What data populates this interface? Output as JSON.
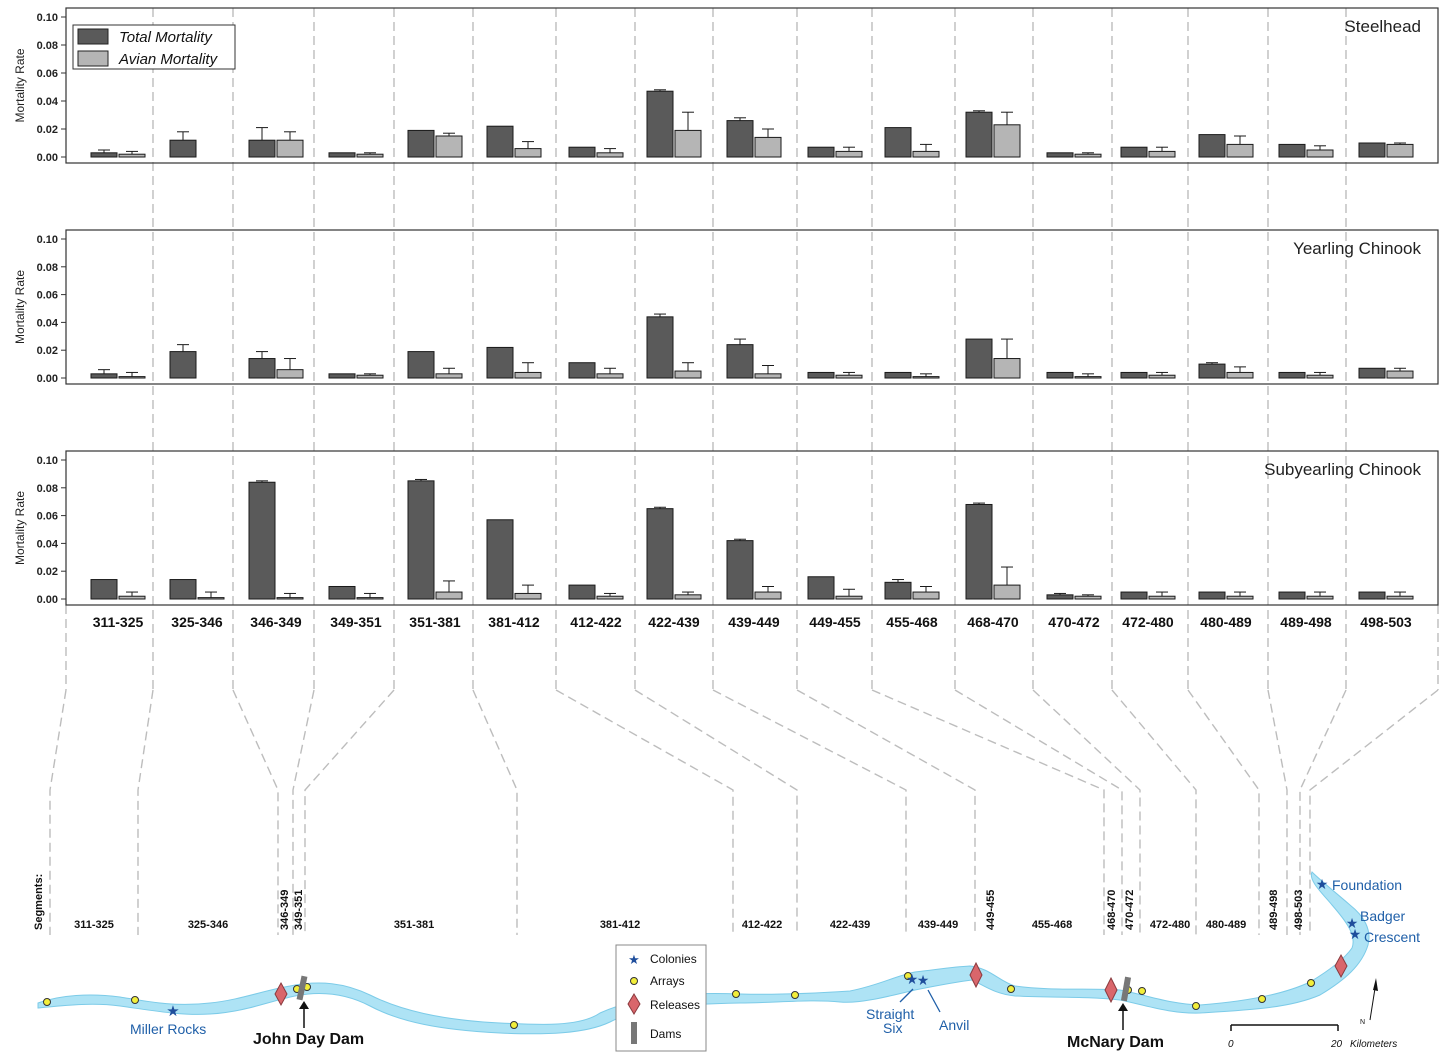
{
  "chart_data": {
    "type": "bar",
    "ylabel": "Mortality Rate",
    "ylim": [
      0,
      0.1
    ],
    "yticks": [
      "0.00",
      "0.02",
      "0.04",
      "0.06",
      "0.08",
      "0.10"
    ],
    "categories": [
      "311-325",
      "325-346",
      "346-349",
      "349-351",
      "351-381",
      "381-412",
      "412-422",
      "422-439",
      "439-449",
      "449-455",
      "455-468",
      "468-470",
      "470-472",
      "472-480",
      "480-489",
      "489-498",
      "498-503"
    ],
    "legend": {
      "total": "Total Mortality",
      "avian": "Avian Mortality",
      "placement": "top-left"
    },
    "colors": {
      "total": "#5a5a5a",
      "avian": "#b5b5b5",
      "river": "#aee3f5",
      "river_edge": "#7ccbe8",
      "release": "#d9666b",
      "dam": "#777777",
      "array": "#f2ee3a",
      "colony": "#1f4e9c",
      "guide": "#bdbdbd"
    },
    "panels": [
      {
        "title": "Steelhead",
        "total": [
          0.003,
          0.012,
          0.012,
          0.003,
          0.019,
          0.022,
          0.007,
          0.047,
          0.026,
          0.007,
          0.021,
          0.032,
          0.003,
          0.007,
          0.016,
          0.009,
          0.01
        ],
        "total_err": [
          0.002,
          0.006,
          0.009,
          0.0,
          0.0,
          0.0,
          0.0,
          0.001,
          0.002,
          0.0,
          0.0,
          0.001,
          0.0,
          0.0,
          0.0,
          0.0,
          0.0
        ],
        "avian": [
          0.002,
          0.0,
          0.012,
          0.002,
          0.015,
          0.006,
          0.003,
          0.019,
          0.014,
          0.004,
          0.004,
          0.023,
          0.002,
          0.004,
          0.009,
          0.005,
          0.009
        ],
        "avian_err": [
          0.002,
          0.0,
          0.006,
          0.001,
          0.002,
          0.005,
          0.003,
          0.013,
          0.006,
          0.003,
          0.005,
          0.009,
          0.001,
          0.003,
          0.006,
          0.003,
          0.001
        ]
      },
      {
        "title": "Yearling Chinook",
        "total": [
          0.003,
          0.019,
          0.014,
          0.003,
          0.019,
          0.022,
          0.011,
          0.044,
          0.024,
          0.004,
          0.004,
          0.028,
          0.004,
          0.004,
          0.01,
          0.004,
          0.007
        ],
        "total_err": [
          0.003,
          0.005,
          0.005,
          0.0,
          0.0,
          0.0,
          0.0,
          0.002,
          0.004,
          0.0,
          0.0,
          0.0,
          0.0,
          0.0,
          0.001,
          0.0,
          0.0
        ],
        "avian": [
          0.001,
          0.0,
          0.006,
          0.002,
          0.003,
          0.004,
          0.003,
          0.005,
          0.003,
          0.002,
          0.001,
          0.014,
          0.001,
          0.002,
          0.004,
          0.002,
          0.005
        ],
        "avian_err": [
          0.003,
          0.0,
          0.008,
          0.001,
          0.004,
          0.007,
          0.004,
          0.006,
          0.006,
          0.002,
          0.002,
          0.014,
          0.002,
          0.002,
          0.004,
          0.002,
          0.002
        ]
      },
      {
        "title": "Subyearling Chinook",
        "total": [
          0.014,
          0.014,
          0.084,
          0.009,
          0.085,
          0.057,
          0.01,
          0.065,
          0.042,
          0.016,
          0.012,
          0.068,
          0.003,
          0.005,
          0.005,
          0.005,
          0.005
        ],
        "total_err": [
          0.0,
          0.0,
          0.001,
          0.0,
          0.001,
          0.0,
          0.0,
          0.001,
          0.001,
          0.0,
          0.002,
          0.001,
          0.001,
          0.0,
          0.0,
          0.0,
          0.0
        ],
        "avian": [
          0.002,
          0.001,
          0.001,
          0.001,
          0.005,
          0.004,
          0.002,
          0.003,
          0.005,
          0.002,
          0.005,
          0.01,
          0.002,
          0.002,
          0.002,
          0.002,
          0.002
        ],
        "avian_err": [
          0.003,
          0.004,
          0.003,
          0.003,
          0.008,
          0.006,
          0.002,
          0.002,
          0.004,
          0.005,
          0.004,
          0.013,
          0.001,
          0.003,
          0.003,
          0.003,
          0.003
        ]
      }
    ]
  },
  "map": {
    "segments_label": "Segments:",
    "segments": [
      "311-325",
      "325-346",
      "346-349",
      "349-351",
      "351-381",
      "381-412",
      "412-422",
      "422-439",
      "439-449",
      "449-455",
      "455-468",
      "468-470",
      "470-472",
      "472-480",
      "480-489",
      "489-498",
      "498-503"
    ],
    "places": [
      "Miller Rocks",
      "Straight",
      "Six",
      "Anvil",
      "Foundation",
      "Badger",
      "Crescent"
    ],
    "dams": [
      "John Day Dam",
      "McNary Dam"
    ],
    "legend": [
      "Colonies",
      "Arrays",
      "Releases",
      "Dams"
    ],
    "scale": {
      "zero": "0",
      "twenty": "20",
      "unit": "Kilometers",
      "north": "N"
    }
  }
}
